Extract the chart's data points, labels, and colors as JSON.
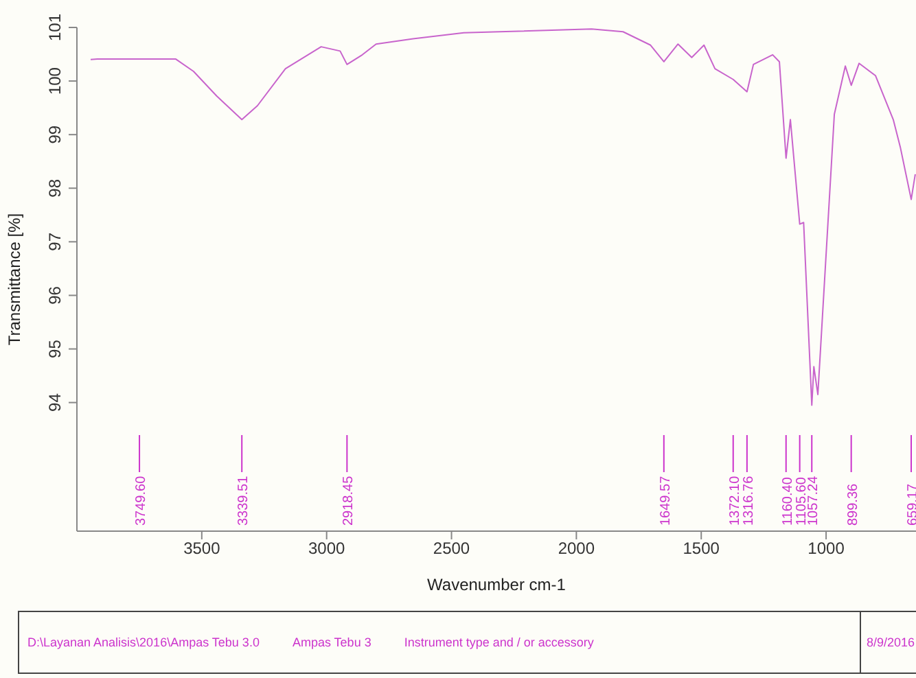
{
  "chart_data": {
    "type": "line",
    "xlabel": "Wavenumber cm-1",
    "ylabel": "Transmittance [%]",
    "xlim": [
      4000,
      640
    ],
    "xticks": [
      3500,
      3000,
      2500,
      2000,
      1500,
      1000
    ],
    "ylim": [
      91.6,
      101
    ],
    "yticks": [
      94,
      95,
      96,
      97,
      98,
      99,
      100,
      101
    ],
    "grid": false,
    "marker": "none",
    "series": [
      {
        "color": "#c864cc",
        "x": [
          3945,
          3918,
          3749.6,
          3604,
          3533,
          3440,
          3339.51,
          3277,
          3165,
          3022,
          2946,
          2918.45,
          2857,
          2802,
          2654,
          2451,
          2308,
          1939,
          1813,
          1703,
          1649.57,
          1593,
          1538,
          1489,
          1445,
          1372.1,
          1316.76,
          1291,
          1214,
          1187,
          1160.4,
          1143,
          1105.6,
          1090,
          1057.24,
          1049,
          1033,
          967,
          923,
          899.36,
          868,
          802,
          731,
          703,
          659.17,
          643
        ],
        "values": [
          100.4,
          100.41,
          100.41,
          100.41,
          100.18,
          99.72,
          99.28,
          99.54,
          100.23,
          100.64,
          100.56,
          100.31,
          100.49,
          100.69,
          100.79,
          100.9,
          100.92,
          100.97,
          100.92,
          100.67,
          100.36,
          100.69,
          100.44,
          100.67,
          100.23,
          100.03,
          99.8,
          100.31,
          100.49,
          100.36,
          98.56,
          99.28,
          97.33,
          97.36,
          93.95,
          94.67,
          94.15,
          99.38,
          100.28,
          99.92,
          100.33,
          100.1,
          99.28,
          98.77,
          97.79,
          98.26
        ]
      }
    ],
    "annotations": [
      {
        "text": "3749.60",
        "x": 3749.6
      },
      {
        "text": "3339.51",
        "x": 3339.51
      },
      {
        "text": "2918.45",
        "x": 2918.45
      },
      {
        "text": "1649.57",
        "x": 1649.57
      },
      {
        "text": "1372.10",
        "x": 1372.1
      },
      {
        "text": "1316.76",
        "x": 1316.76
      },
      {
        "text": "1160.40",
        "x": 1160.4
      },
      {
        "text": "1105.60",
        "x": 1105.6
      },
      {
        "text": "1057.24",
        "x": 1057.24
      },
      {
        "text": "899.36",
        "x": 899.36
      },
      {
        "text": "659.17",
        "x": 659.17
      },
      "D:\\Layanan Analisis\\2016\\Ampas Tebu 3.0",
      "Ampas Tebu 3",
      "Instrument type and / or accessory",
      "8/9/2016"
    ]
  }
}
